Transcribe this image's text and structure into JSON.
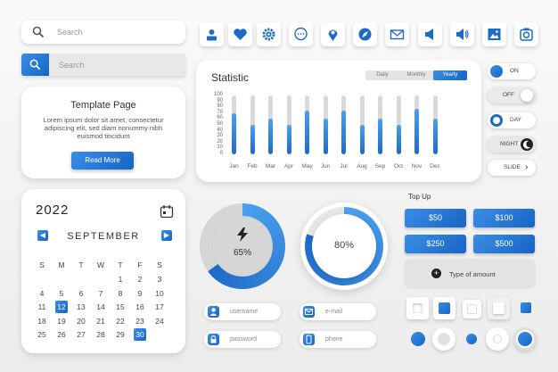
{
  "search_bar_1": {
    "placeholder": "Search",
    "icon": "search-icon"
  },
  "search_bar_2": {
    "placeholder": "Search",
    "icon": "search-icon"
  },
  "template_card": {
    "title": "Template Page",
    "body": "Lorem ipsum dolor sit amet, consectetur adipiscing elit, sed diam nonummy nibh euismod tincidunt",
    "button": "Read More"
  },
  "icon_row": [
    "user-icon",
    "heart-icon",
    "gear-icon",
    "chat-icon",
    "location-pin-icon",
    "compass-icon",
    "mail-icon",
    "volume-icon",
    "speaker-icon",
    "image-icon",
    "camera-icon"
  ],
  "statistic": {
    "title": "Statistic",
    "tabs": [
      {
        "label": "Daily",
        "active": false
      },
      {
        "label": "Monthly",
        "active": false
      },
      {
        "label": "Yearly",
        "active": true
      }
    ]
  },
  "chart_data": {
    "type": "bar",
    "title": "Statistic",
    "categories": [
      "Jan",
      "Feb",
      "Mar",
      "Apr",
      "May",
      "Jun",
      "Jul",
      "Aug",
      "Sep",
      "Oct",
      "Nov",
      "Dec"
    ],
    "values": [
      70,
      50,
      60,
      50,
      75,
      60,
      75,
      50,
      60,
      50,
      78,
      60
    ],
    "yticks": [
      0,
      10,
      20,
      30,
      40,
      50,
      60,
      70,
      80,
      90,
      100
    ],
    "ylim": [
      0,
      100
    ],
    "xlabel": "",
    "ylabel": ""
  },
  "toggles": [
    {
      "label": "ON",
      "state": "on"
    },
    {
      "label": "OFF",
      "state": "off"
    },
    {
      "label": "DAY",
      "state": "on"
    },
    {
      "label": "NIGHT",
      "state": "night"
    },
    {
      "label": "SLIDE",
      "state": "slide"
    }
  ],
  "calendar": {
    "year": "2022",
    "month": "SEPTEMBER",
    "weekdays": [
      "S",
      "M",
      "T",
      "W",
      "T",
      "F",
      "S"
    ],
    "days": [
      "",
      "",
      "",
      "",
      "1",
      "2",
      "3",
      "4",
      "5",
      "6",
      "7",
      "8",
      "9",
      "10",
      "11",
      "12",
      "13",
      "14",
      "15",
      "16",
      "17",
      "18",
      "19",
      "20",
      "21",
      "22",
      "23",
      "24",
      "25",
      "26",
      "27",
      "28",
      "29",
      "30",
      ""
    ],
    "selected": [
      "12",
      "30"
    ]
  },
  "progress": [
    {
      "label": "65%",
      "value": 65,
      "icon": "lightning-icon"
    },
    {
      "label": "80%",
      "value": 80
    }
  ],
  "form_fields": [
    {
      "placeholder": "username",
      "icon": "user-icon"
    },
    {
      "placeholder": "e-mail",
      "icon": "mail-icon"
    },
    {
      "placeholder": "password",
      "icon": "lock-icon"
    },
    {
      "placeholder": "phone",
      "icon": "phone-icon"
    }
  ],
  "topup": {
    "title": "Top Up",
    "amounts": [
      "$50",
      "$100",
      "$250",
      "$500"
    ],
    "custom": "Type of amount"
  },
  "colors": {
    "accent": "#1e6ac8",
    "accent_light": "#3a8ee6",
    "track": "#d9d9d9"
  }
}
